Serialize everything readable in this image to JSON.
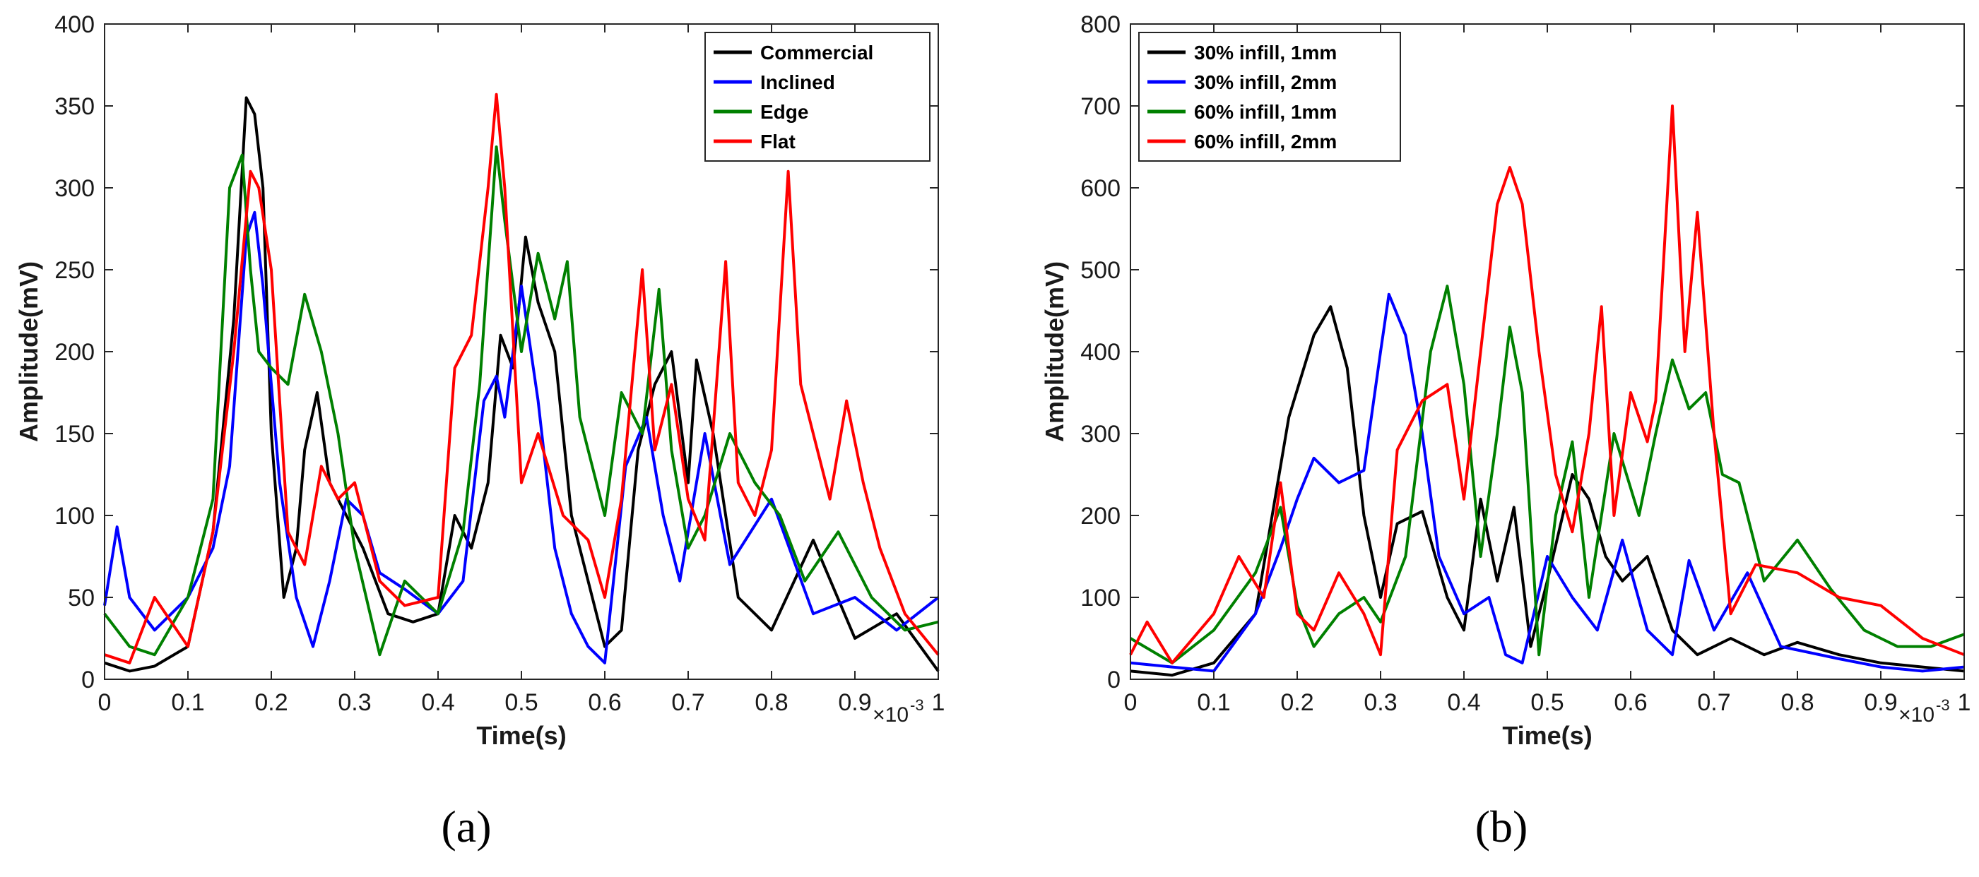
{
  "figure": {
    "panel_labels": [
      "(a)",
      "(b)"
    ],
    "panel_letters": [
      "a",
      "b"
    ]
  },
  "chart_data": [
    {
      "type": "line",
      "panel": "a",
      "title": "",
      "xlabel": "Time(s)",
      "ylabel": "Amplitude(mV)",
      "x_exponent_text": "×10",
      "x_exponent_power": "-3",
      "xlim": [
        0,
        1
      ],
      "ylim": [
        0,
        400
      ],
      "xticks": [
        0,
        0.1,
        0.2,
        0.3,
        0.4,
        0.5,
        0.6,
        0.7,
        0.8,
        0.9,
        1
      ],
      "xtick_labels": [
        "0",
        "0.1",
        "0.2",
        "0.3",
        "0.4",
        "0.5",
        "0.6",
        "0.7",
        "0.8",
        "0.9",
        "1"
      ],
      "yticks": [
        0,
        50,
        100,
        150,
        200,
        250,
        300,
        350,
        400
      ],
      "ytick_labels": [
        "0",
        "50",
        "100",
        "150",
        "200",
        "250",
        "300",
        "350",
        "400"
      ],
      "legend_position": "top-right",
      "grid": false,
      "series": [
        {
          "name": "Commercial",
          "color": "#000000",
          "x": [
            0,
            0.03,
            0.06,
            0.1,
            0.13,
            0.155,
            0.17,
            0.18,
            0.19,
            0.2,
            0.215,
            0.23,
            0.24,
            0.255,
            0.27,
            0.29,
            0.31,
            0.34,
            0.37,
            0.4,
            0.42,
            0.44,
            0.46,
            0.475,
            0.49,
            0.505,
            0.52,
            0.54,
            0.56,
            0.58,
            0.6,
            0.62,
            0.64,
            0.66,
            0.68,
            0.7,
            0.71,
            0.73,
            0.76,
            0.8,
            0.85,
            0.9,
            0.95,
            1
          ],
          "y": [
            10,
            5,
            8,
            20,
            90,
            220,
            355,
            345,
            300,
            150,
            50,
            80,
            140,
            175,
            120,
            100,
            80,
            40,
            35,
            40,
            100,
            80,
            120,
            210,
            190,
            270,
            230,
            200,
            100,
            60,
            20,
            30,
            140,
            180,
            200,
            120,
            195,
            150,
            50,
            30,
            85,
            25,
            40,
            5
          ]
        },
        {
          "name": "Inclined",
          "color": "#0000ff",
          "x": [
            0,
            0.015,
            0.03,
            0.06,
            0.1,
            0.13,
            0.15,
            0.17,
            0.18,
            0.19,
            0.21,
            0.23,
            0.25,
            0.27,
            0.29,
            0.31,
            0.33,
            0.36,
            0.4,
            0.43,
            0.455,
            0.47,
            0.48,
            0.5,
            0.52,
            0.54,
            0.56,
            0.58,
            0.6,
            0.625,
            0.65,
            0.67,
            0.69,
            0.72,
            0.75,
            0.8,
            0.85,
            0.9,
            0.95,
            1
          ],
          "y": [
            45,
            93,
            50,
            30,
            50,
            80,
            130,
            270,
            285,
            240,
            120,
            50,
            20,
            60,
            110,
            100,
            65,
            55,
            40,
            60,
            170,
            185,
            160,
            240,
            170,
            80,
            40,
            20,
            10,
            130,
            160,
            100,
            60,
            150,
            70,
            110,
            40,
            50,
            30,
            50
          ]
        },
        {
          "name": "Edge",
          "color": "#008000",
          "x": [
            0,
            0.03,
            0.06,
            0.1,
            0.13,
            0.15,
            0.165,
            0.175,
            0.185,
            0.2,
            0.22,
            0.24,
            0.26,
            0.28,
            0.3,
            0.33,
            0.36,
            0.4,
            0.43,
            0.45,
            0.47,
            0.48,
            0.5,
            0.52,
            0.54,
            0.555,
            0.57,
            0.6,
            0.62,
            0.645,
            0.665,
            0.68,
            0.7,
            0.72,
            0.75,
            0.78,
            0.81,
            0.84,
            0.88,
            0.92,
            0.96,
            1
          ],
          "y": [
            40,
            20,
            15,
            50,
            110,
            300,
            320,
            250,
            200,
            190,
            180,
            235,
            200,
            150,
            80,
            15,
            60,
            40,
            90,
            180,
            325,
            280,
            200,
            260,
            220,
            255,
            160,
            100,
            175,
            150,
            238,
            140,
            80,
            100,
            150,
            120,
            100,
            60,
            90,
            50,
            30,
            35
          ]
        },
        {
          "name": "Flat",
          "color": "#ff0000",
          "x": [
            0,
            0.03,
            0.06,
            0.1,
            0.13,
            0.155,
            0.175,
            0.185,
            0.2,
            0.22,
            0.24,
            0.26,
            0.28,
            0.3,
            0.33,
            0.36,
            0.4,
            0.42,
            0.44,
            0.46,
            0.47,
            0.48,
            0.5,
            0.52,
            0.55,
            0.58,
            0.6,
            0.62,
            0.645,
            0.66,
            0.68,
            0.7,
            0.72,
            0.745,
            0.76,
            0.78,
            0.8,
            0.82,
            0.835,
            0.85,
            0.87,
            0.89,
            0.91,
            0.93,
            0.96,
            1
          ],
          "y": [
            15,
            10,
            50,
            20,
            90,
            200,
            310,
            300,
            250,
            90,
            70,
            130,
            110,
            120,
            60,
            45,
            50,
            190,
            210,
            300,
            357,
            300,
            120,
            150,
            100,
            85,
            50,
            110,
            250,
            140,
            180,
            110,
            85,
            255,
            120,
            100,
            140,
            310,
            180,
            150,
            110,
            170,
            120,
            80,
            40,
            15
          ]
        }
      ]
    },
    {
      "type": "line",
      "panel": "b",
      "title": "",
      "xlabel": "Time(s)",
      "ylabel": "Amplitude(mV)",
      "x_exponent_text": "×10",
      "x_exponent_power": "-3",
      "xlim": [
        0,
        1
      ],
      "ylim": [
        0,
        800
      ],
      "xticks": [
        0,
        0.1,
        0.2,
        0.3,
        0.4,
        0.5,
        0.6,
        0.7,
        0.8,
        0.9,
        1
      ],
      "xtick_labels": [
        "0",
        "0.1",
        "0.2",
        "0.3",
        "0.4",
        "0.5",
        "0.6",
        "0.7",
        "0.8",
        "0.9",
        "1"
      ],
      "yticks": [
        0,
        100,
        200,
        300,
        400,
        500,
        600,
        700,
        800
      ],
      "ytick_labels": [
        "0",
        "100",
        "200",
        "300",
        "400",
        "500",
        "600",
        "700",
        "800"
      ],
      "legend_position": "top-left",
      "grid": false,
      "series": [
        {
          "name": "30% infill, 1mm",
          "color": "#000000",
          "x": [
            0,
            0.05,
            0.1,
            0.15,
            0.19,
            0.22,
            0.24,
            0.26,
            0.28,
            0.3,
            0.32,
            0.35,
            0.38,
            0.4,
            0.42,
            0.44,
            0.46,
            0.48,
            0.5,
            0.53,
            0.55,
            0.57,
            0.59,
            0.62,
            0.65,
            0.68,
            0.72,
            0.76,
            0.8,
            0.85,
            0.9,
            0.95,
            1
          ],
          "y": [
            10,
            5,
            20,
            80,
            320,
            420,
            455,
            380,
            200,
            100,
            190,
            205,
            100,
            60,
            220,
            120,
            210,
            40,
            120,
            250,
            220,
            150,
            120,
            150,
            60,
            30,
            50,
            30,
            45,
            30,
            20,
            15,
            10
          ]
        },
        {
          "name": "30% infill, 2mm",
          "color": "#0000ff",
          "x": [
            0,
            0.05,
            0.1,
            0.15,
            0.18,
            0.2,
            0.22,
            0.25,
            0.28,
            0.3,
            0.31,
            0.33,
            0.35,
            0.37,
            0.4,
            0.43,
            0.45,
            0.47,
            0.5,
            0.53,
            0.56,
            0.59,
            0.62,
            0.65,
            0.67,
            0.7,
            0.74,
            0.78,
            0.85,
            0.9,
            0.95,
            1
          ],
          "y": [
            20,
            15,
            10,
            80,
            160,
            220,
            270,
            240,
            255,
            400,
            470,
            420,
            300,
            150,
            80,
            100,
            30,
            20,
            150,
            100,
            60,
            170,
            60,
            30,
            145,
            60,
            130,
            40,
            25,
            15,
            10,
            15
          ]
        },
        {
          "name": "60% infill, 1mm",
          "color": "#008000",
          "x": [
            0,
            0.05,
            0.1,
            0.15,
            0.18,
            0.2,
            0.22,
            0.25,
            0.28,
            0.3,
            0.33,
            0.36,
            0.38,
            0.4,
            0.42,
            0.44,
            0.455,
            0.47,
            0.49,
            0.51,
            0.53,
            0.55,
            0.58,
            0.61,
            0.63,
            0.65,
            0.67,
            0.69,
            0.71,
            0.73,
            0.76,
            0.8,
            0.84,
            0.88,
            0.92,
            0.96,
            1
          ],
          "y": [
            50,
            20,
            60,
            130,
            210,
            90,
            40,
            80,
            100,
            70,
            150,
            400,
            480,
            360,
            150,
            300,
            430,
            350,
            30,
            200,
            290,
            100,
            300,
            200,
            300,
            390,
            330,
            350,
            250,
            240,
            120,
            170,
            110,
            60,
            40,
            40,
            55
          ]
        },
        {
          "name": "60% infill, 2mm",
          "color": "#ff0000",
          "x": [
            0,
            0.02,
            0.05,
            0.1,
            0.13,
            0.16,
            0.18,
            0.2,
            0.22,
            0.25,
            0.28,
            0.3,
            0.32,
            0.35,
            0.38,
            0.4,
            0.42,
            0.44,
            0.455,
            0.47,
            0.49,
            0.51,
            0.53,
            0.55,
            0.565,
            0.58,
            0.6,
            0.62,
            0.63,
            0.65,
            0.665,
            0.68,
            0.7,
            0.72,
            0.75,
            0.8,
            0.85,
            0.9,
            0.95,
            1
          ],
          "y": [
            30,
            70,
            20,
            80,
            150,
            100,
            240,
            80,
            60,
            130,
            80,
            30,
            280,
            340,
            360,
            220,
            400,
            580,
            625,
            580,
            400,
            250,
            180,
            300,
            455,
            200,
            350,
            290,
            340,
            700,
            400,
            570,
            300,
            80,
            140,
            130,
            100,
            90,
            50,
            30
          ]
        }
      ]
    }
  ]
}
